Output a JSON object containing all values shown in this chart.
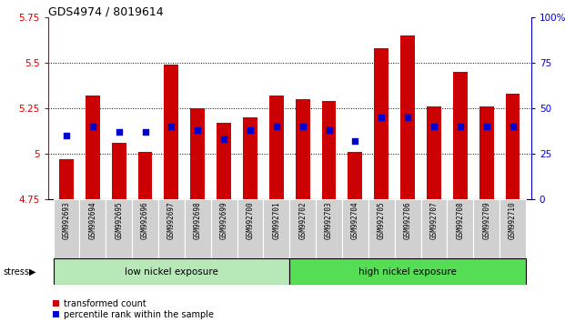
{
  "title": "GDS4974 / 8019614",
  "samples": [
    "GSM992693",
    "GSM992694",
    "GSM992695",
    "GSM992696",
    "GSM992697",
    "GSM992698",
    "GSM992699",
    "GSM992700",
    "GSM992701",
    "GSM992702",
    "GSM992703",
    "GSM992704",
    "GSM992705",
    "GSM992706",
    "GSM992707",
    "GSM992708",
    "GSM992709",
    "GSM992710"
  ],
  "red_values": [
    4.97,
    5.32,
    5.06,
    5.01,
    5.49,
    5.25,
    5.17,
    5.2,
    5.32,
    5.3,
    5.29,
    5.01,
    5.58,
    5.65,
    5.26,
    5.45,
    5.26,
    5.33
  ],
  "blue_percentiles": [
    35,
    40,
    37,
    37,
    40,
    38,
    33,
    38,
    40,
    40,
    38,
    32,
    45,
    45,
    40,
    40,
    40,
    40
  ],
  "low_nickel_count": 9,
  "group_labels": [
    "low nickel exposure",
    "high nickel exposure"
  ],
  "bar_bottom": 4.75,
  "ylim_left": [
    4.75,
    5.75
  ],
  "ylim_right": [
    0,
    100
  ],
  "yticks_left": [
    4.75,
    5.0,
    5.25,
    5.5,
    5.75
  ],
  "yticks_right": [
    0,
    25,
    50,
    75,
    100
  ],
  "grid_vals": [
    5.0,
    5.25,
    5.5
  ],
  "red_color": "#cc0000",
  "blue_color": "#0000cc",
  "bar_width": 0.55,
  "legend_labels": [
    "transformed count",
    "percentile rank within the sample"
  ],
  "stress_label": "stress",
  "low_nickel_color": "#b8e8b8",
  "high_nickel_color": "#55dd55"
}
